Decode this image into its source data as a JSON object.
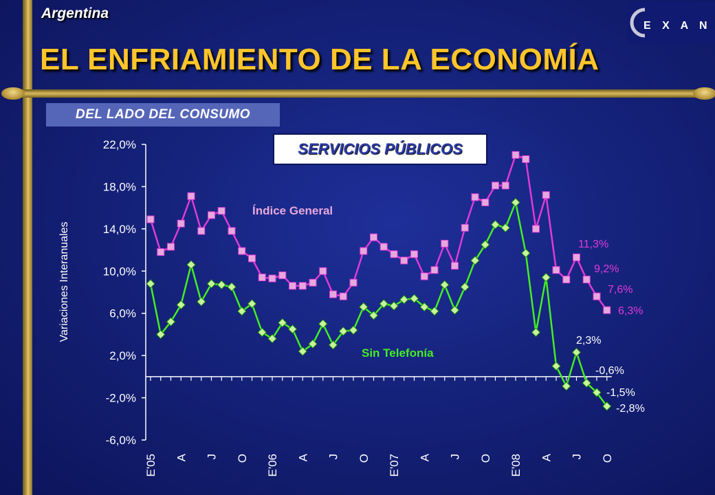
{
  "header": {
    "country": "Argentina",
    "title": "EL ENFRIAMIENTO DE LA ECONOMÍA",
    "subtitle": "DEL LADO DEL CONSUMO",
    "logo_text": "EXANTE"
  },
  "colors": {
    "indice": "#e03ad8",
    "indice_marker": "#e6a8dc",
    "sin_tel": "#44ee22",
    "sin_tel_marker": "#c6f59a",
    "title": "#ffc52a"
  },
  "chart_data": {
    "type": "line",
    "title": "SERVICIOS PÚBLICOS",
    "ylabel": "Variaciones Interanuales",
    "xlabel": "",
    "ylim": [
      -6,
      22
    ],
    "yticks": [
      "22,0%",
      "18,0%",
      "14,0%",
      "10,0%",
      "6,0%",
      "2,0%",
      "-2,0%",
      "-6,0%"
    ],
    "ytick_values": [
      22,
      18,
      14,
      10,
      6,
      2,
      -2,
      -6
    ],
    "n_points": 46,
    "x_tick_labels": [
      {
        "i": 0,
        "label": "E'05"
      },
      {
        "i": 3,
        "label": "A"
      },
      {
        "i": 6,
        "label": "J"
      },
      {
        "i": 9,
        "label": "O"
      },
      {
        "i": 12,
        "label": "E'06"
      },
      {
        "i": 15,
        "label": "A"
      },
      {
        "i": 18,
        "label": "J"
      },
      {
        "i": 21,
        "label": "O"
      },
      {
        "i": 24,
        "label": "E'07"
      },
      {
        "i": 27,
        "label": "A"
      },
      {
        "i": 30,
        "label": "J"
      },
      {
        "i": 33,
        "label": "O"
      },
      {
        "i": 36,
        "label": "E'08"
      },
      {
        "i": 39,
        "label": "A"
      },
      {
        "i": 42,
        "label": "J"
      },
      {
        "i": 45,
        "label": "O"
      }
    ],
    "series": [
      {
        "name": "Índice General",
        "values": [
          14.9,
          11.8,
          12.3,
          14.5,
          17.1,
          13.8,
          15.3,
          15.7,
          13.8,
          11.9,
          11.2,
          9.4,
          9.3,
          9.6,
          8.6,
          8.6,
          8.9,
          10.0,
          7.8,
          7.6,
          8.9,
          11.9,
          13.2,
          12.3,
          11.6,
          11.0,
          11.6,
          9.5,
          10.1,
          12.6,
          10.5,
          14.1,
          17.0,
          16.5,
          18.1,
          18.1,
          21.0,
          20.6,
          14.0,
          17.2,
          10.1,
          9.2,
          11.3,
          9.2,
          7.6,
          6.3
        ]
      },
      {
        "name": "Sin Telefonía",
        "values": [
          8.8,
          4.0,
          5.2,
          6.8,
          10.6,
          7.1,
          8.8,
          8.7,
          8.5,
          6.2,
          6.9,
          4.2,
          3.6,
          5.1,
          4.5,
          2.4,
          3.1,
          5.0,
          3.0,
          4.3,
          4.4,
          6.6,
          5.8,
          6.9,
          6.7,
          7.3,
          7.4,
          6.6,
          6.2,
          8.7,
          6.3,
          8.5,
          11.0,
          12.5,
          14.4,
          14.1,
          16.5,
          11.7,
          4.2,
          9.4,
          1.0,
          -0.9,
          2.3,
          -0.6,
          -1.5,
          -2.8
        ]
      }
    ],
    "annotations": [
      {
        "series": 0,
        "i": 42,
        "text": "11,3%"
      },
      {
        "series": 0,
        "i": 43,
        "text": "9,2%"
      },
      {
        "series": 0,
        "i": 44,
        "text": "7,6%"
      },
      {
        "series": 0,
        "i": 45,
        "text": "6,3%"
      },
      {
        "series": 1,
        "i": 42,
        "text": "2,3%"
      },
      {
        "series": 1,
        "i": 43,
        "text": "-0,6%"
      },
      {
        "series": 1,
        "i": 44,
        "text": "-1,5%"
      },
      {
        "series": 1,
        "i": 45,
        "text": "-2,8%"
      }
    ],
    "series_labels": [
      "Índice General",
      "Sin Telefonía"
    ],
    "grid": false,
    "legend": "inline"
  }
}
